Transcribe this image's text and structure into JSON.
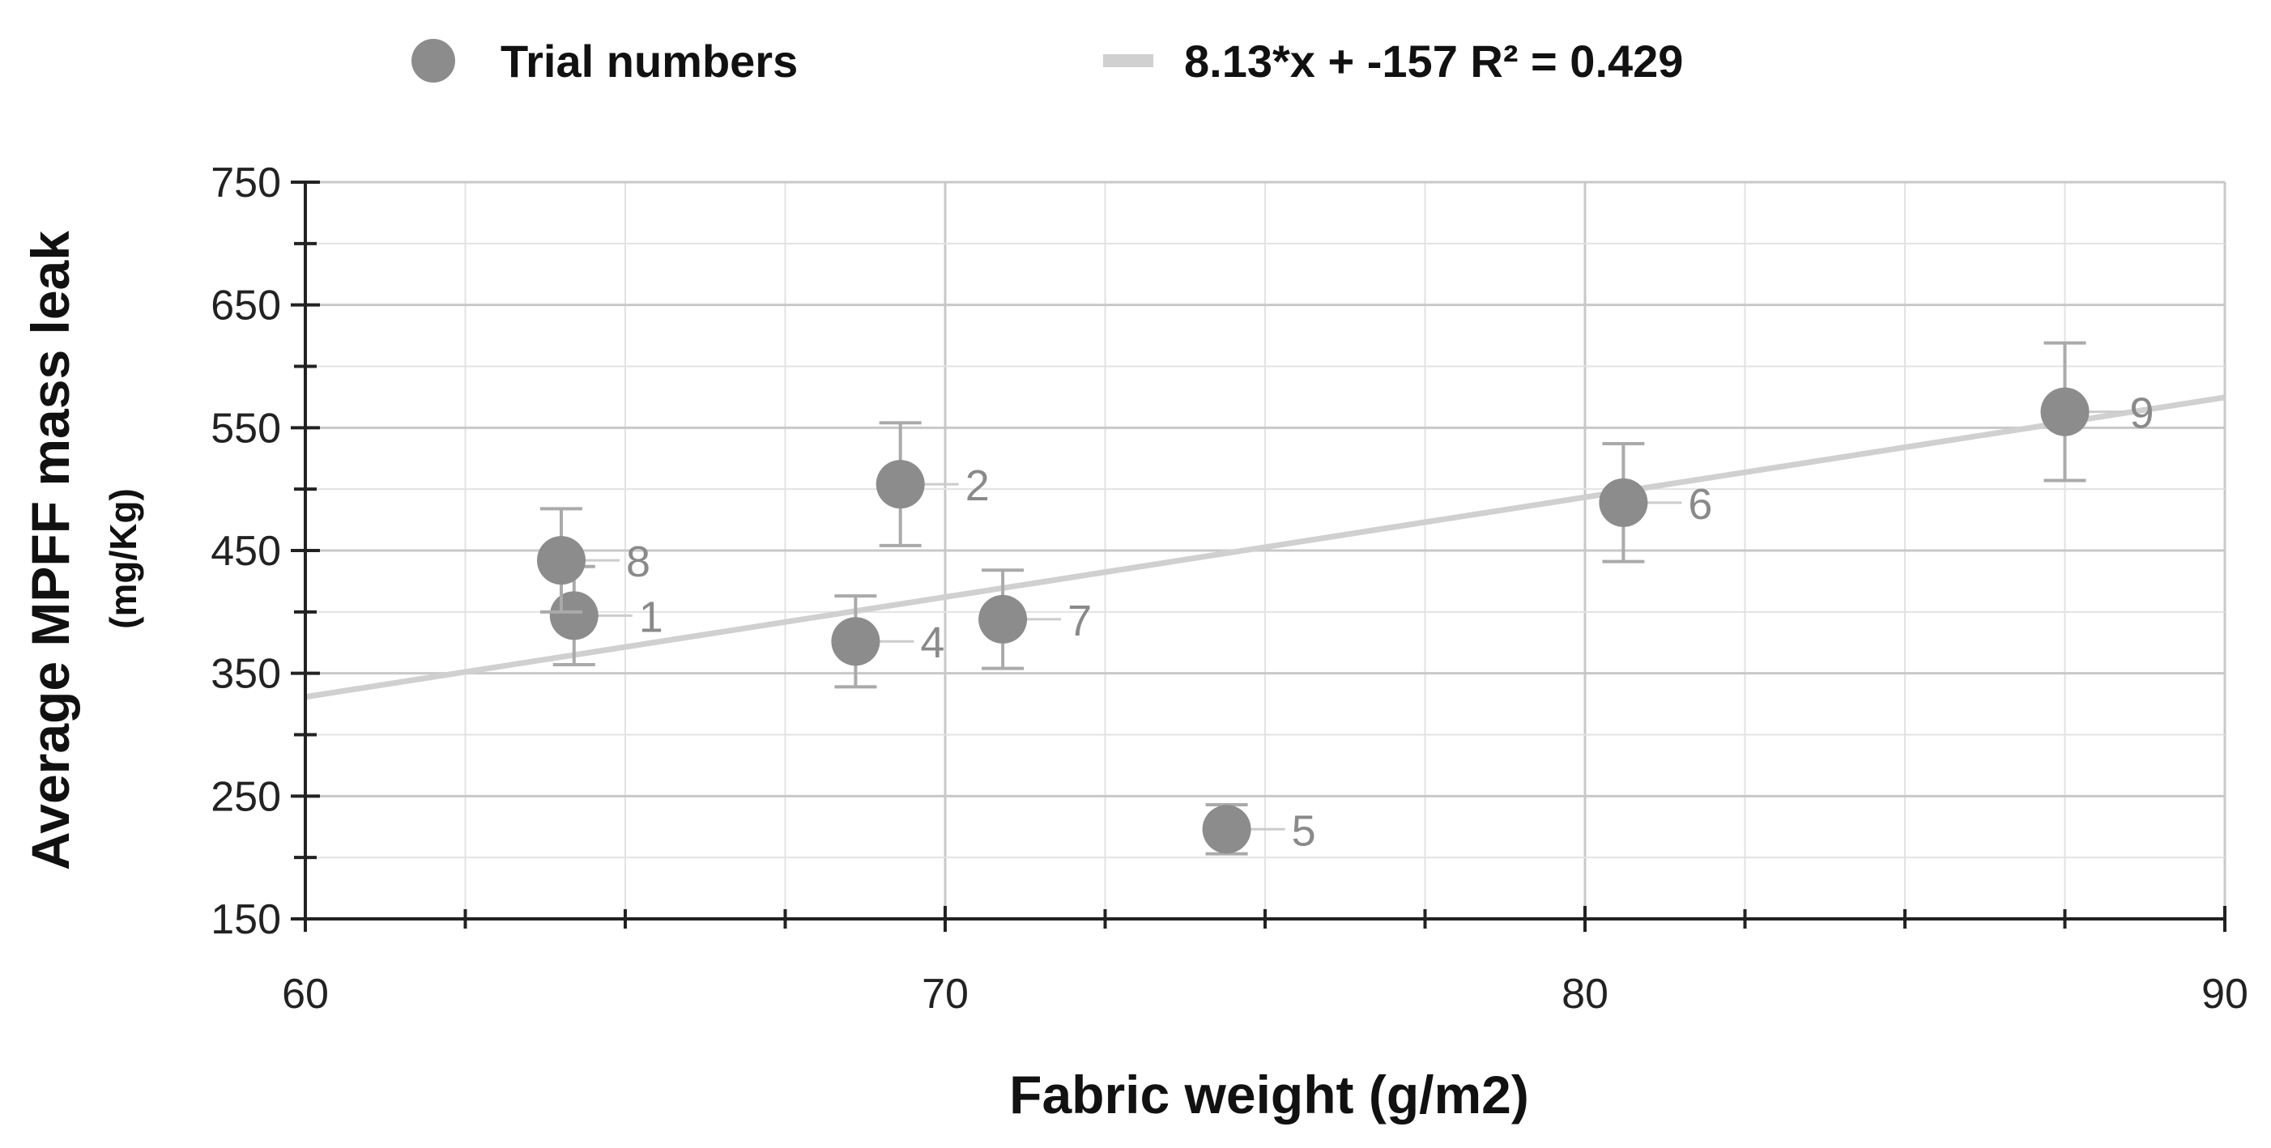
{
  "chart_data": {
    "type": "scatter",
    "xlabel": "Fabric weight (g/m2)",
    "ylabel": "Average MPFF mass leak",
    "ylabel_unit": "(mg/Kg)",
    "xlim": [
      60,
      90
    ],
    "ylim": [
      150,
      750
    ],
    "x_ticks": [
      60,
      70,
      80,
      90
    ],
    "y_ticks": [
      150,
      250,
      350,
      450,
      550,
      650,
      750
    ],
    "grid": true,
    "legend_position": "top",
    "series": [
      {
        "name": "Trial numbers",
        "color": "#8c8c8c",
        "points": [
          {
            "label": "1",
            "x": 64.2,
            "y": 397,
            "err": 40
          },
          {
            "label": "2",
            "x": 69.3,
            "y": 504,
            "err": 50
          },
          {
            "label": "4",
            "x": 68.6,
            "y": 376,
            "err": 37
          },
          {
            "label": "5",
            "x": 74.4,
            "y": 223,
            "err": 20
          },
          {
            "label": "6",
            "x": 80.6,
            "y": 489,
            "err": 48
          },
          {
            "label": "7",
            "x": 70.9,
            "y": 394,
            "err": 40
          },
          {
            "label": "8",
            "x": 64.0,
            "y": 442,
            "err": 42
          },
          {
            "label": "9",
            "x": 87.5,
            "y": 563,
            "err": 56
          }
        ]
      }
    ],
    "trendline": {
      "label": "8.13*x + -157 R² = 0.429",
      "slope": 8.13,
      "intercept": -157,
      "r2": 0.429,
      "color": "#d0d0d0"
    }
  }
}
